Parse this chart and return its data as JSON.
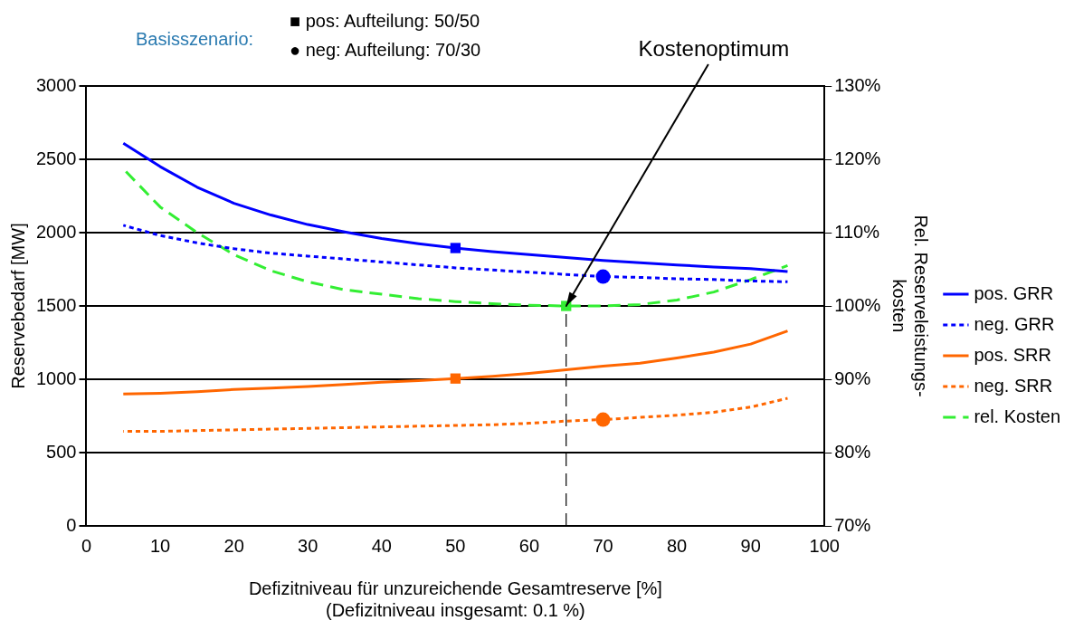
{
  "chart_data": {
    "type": "line",
    "xlabel": "Defizitniveau für unzureichende Gesamtreserve [%]\n(Defizitniveau insgesamt: 0.1 %)",
    "ylabel": "Reservebedarf [MW]",
    "y2label": "Rel. Reserveleistungs-\nkosten",
    "x": [
      5,
      10,
      15,
      20,
      25,
      30,
      35,
      40,
      45,
      50,
      55,
      60,
      65,
      70,
      75,
      80,
      85,
      90,
      95
    ],
    "xlim": [
      0,
      100
    ],
    "xticks": [
      0,
      10,
      20,
      30,
      40,
      50,
      60,
      70,
      80,
      90,
      100
    ],
    "ylim": [
      0,
      3000
    ],
    "yticks": [
      0,
      500,
      1000,
      1500,
      2000,
      2500,
      3000
    ],
    "y2lim": [
      70,
      130
    ],
    "y2ticks": [
      {
        "value": 70,
        "label": "70%"
      },
      {
        "value": 80,
        "label": "80%"
      },
      {
        "value": 90,
        "label": "90%"
      },
      {
        "value": 100,
        "label": "100%"
      },
      {
        "value": 110,
        "label": "110%"
      },
      {
        "value": 120,
        "label": "120%"
      },
      {
        "value": 130,
        "label": "130%"
      }
    ],
    "grid": "y",
    "legend": "right",
    "marker": "none",
    "series": [
      {
        "name": "pos. GRR",
        "color": "#0000ff",
        "line_style": "solid",
        "values": [
          2610,
          2450,
          2310,
          2200,
          2120,
          2055,
          2005,
          1960,
          1925,
          1895,
          1870,
          1850,
          1830,
          1810,
          1795,
          1780,
          1765,
          1755,
          1735
        ]
      },
      {
        "name": "neg. GRR",
        "color": "#0000ff",
        "line_style": "dotted",
        "values": [
          2050,
          1980,
          1930,
          1890,
          1860,
          1840,
          1820,
          1800,
          1780,
          1760,
          1745,
          1730,
          1715,
          1700,
          1695,
          1685,
          1680,
          1670,
          1665
        ]
      },
      {
        "name": "pos. SRR",
        "color": "#ff6600",
        "line_style": "solid",
        "values": [
          900,
          905,
          915,
          930,
          940,
          950,
          965,
          980,
          990,
          1005,
          1020,
          1040,
          1065,
          1090,
          1110,
          1145,
          1185,
          1240,
          1330
        ]
      },
      {
        "name": "neg. SRR",
        "color": "#ff6600",
        "line_style": "dotted",
        "values": [
          645,
          645,
          650,
          655,
          660,
          665,
          670,
          675,
          680,
          685,
          690,
          700,
          715,
          725,
          740,
          755,
          775,
          810,
          870
        ]
      },
      {
        "name": "rel. Kosten",
        "color": "#33ee33",
        "line_style": "dashed",
        "axis": "y2",
        "values": [
          118.7,
          113.5,
          110,
          107,
          104.8,
          103.3,
          102.2,
          101.6,
          101,
          100.6,
          100.3,
          100.1,
          100,
          100,
          100.2,
          100.8,
          101.9,
          103.6,
          105.5
        ]
      },
      {
        "type": "scatter",
        "marker": "square",
        "color": "#0000ff",
        "x": [
          50
        ],
        "values": [
          1895
        ]
      },
      {
        "type": "scatter",
        "marker": "circle",
        "color": "#0000ff",
        "x": [
          70
        ],
        "values": [
          1700
        ]
      },
      {
        "type": "scatter",
        "marker": "square",
        "color": "#ff6600",
        "x": [
          50
        ],
        "values": [
          1005
        ]
      },
      {
        "type": "scatter",
        "marker": "circle",
        "color": "#ff6600",
        "x": [
          70
        ],
        "values": [
          725
        ]
      },
      {
        "type": "scatter",
        "marker": "square",
        "color": "#33ee33",
        "axis": "y2",
        "x": [
          65
        ],
        "values": [
          100
        ]
      }
    ],
    "ref_lines": [
      {
        "axis": "x",
        "value": 65,
        "line_style": "dashed",
        "color": "#000000"
      }
    ],
    "annotations": [
      {
        "text": "Kostenoptimum",
        "x": 65,
        "y": 1500
      },
      "Basisszenario:",
      "■ pos: Aufteilung: 50/50",
      "● neg: Aufteilung: 70/30"
    ]
  }
}
